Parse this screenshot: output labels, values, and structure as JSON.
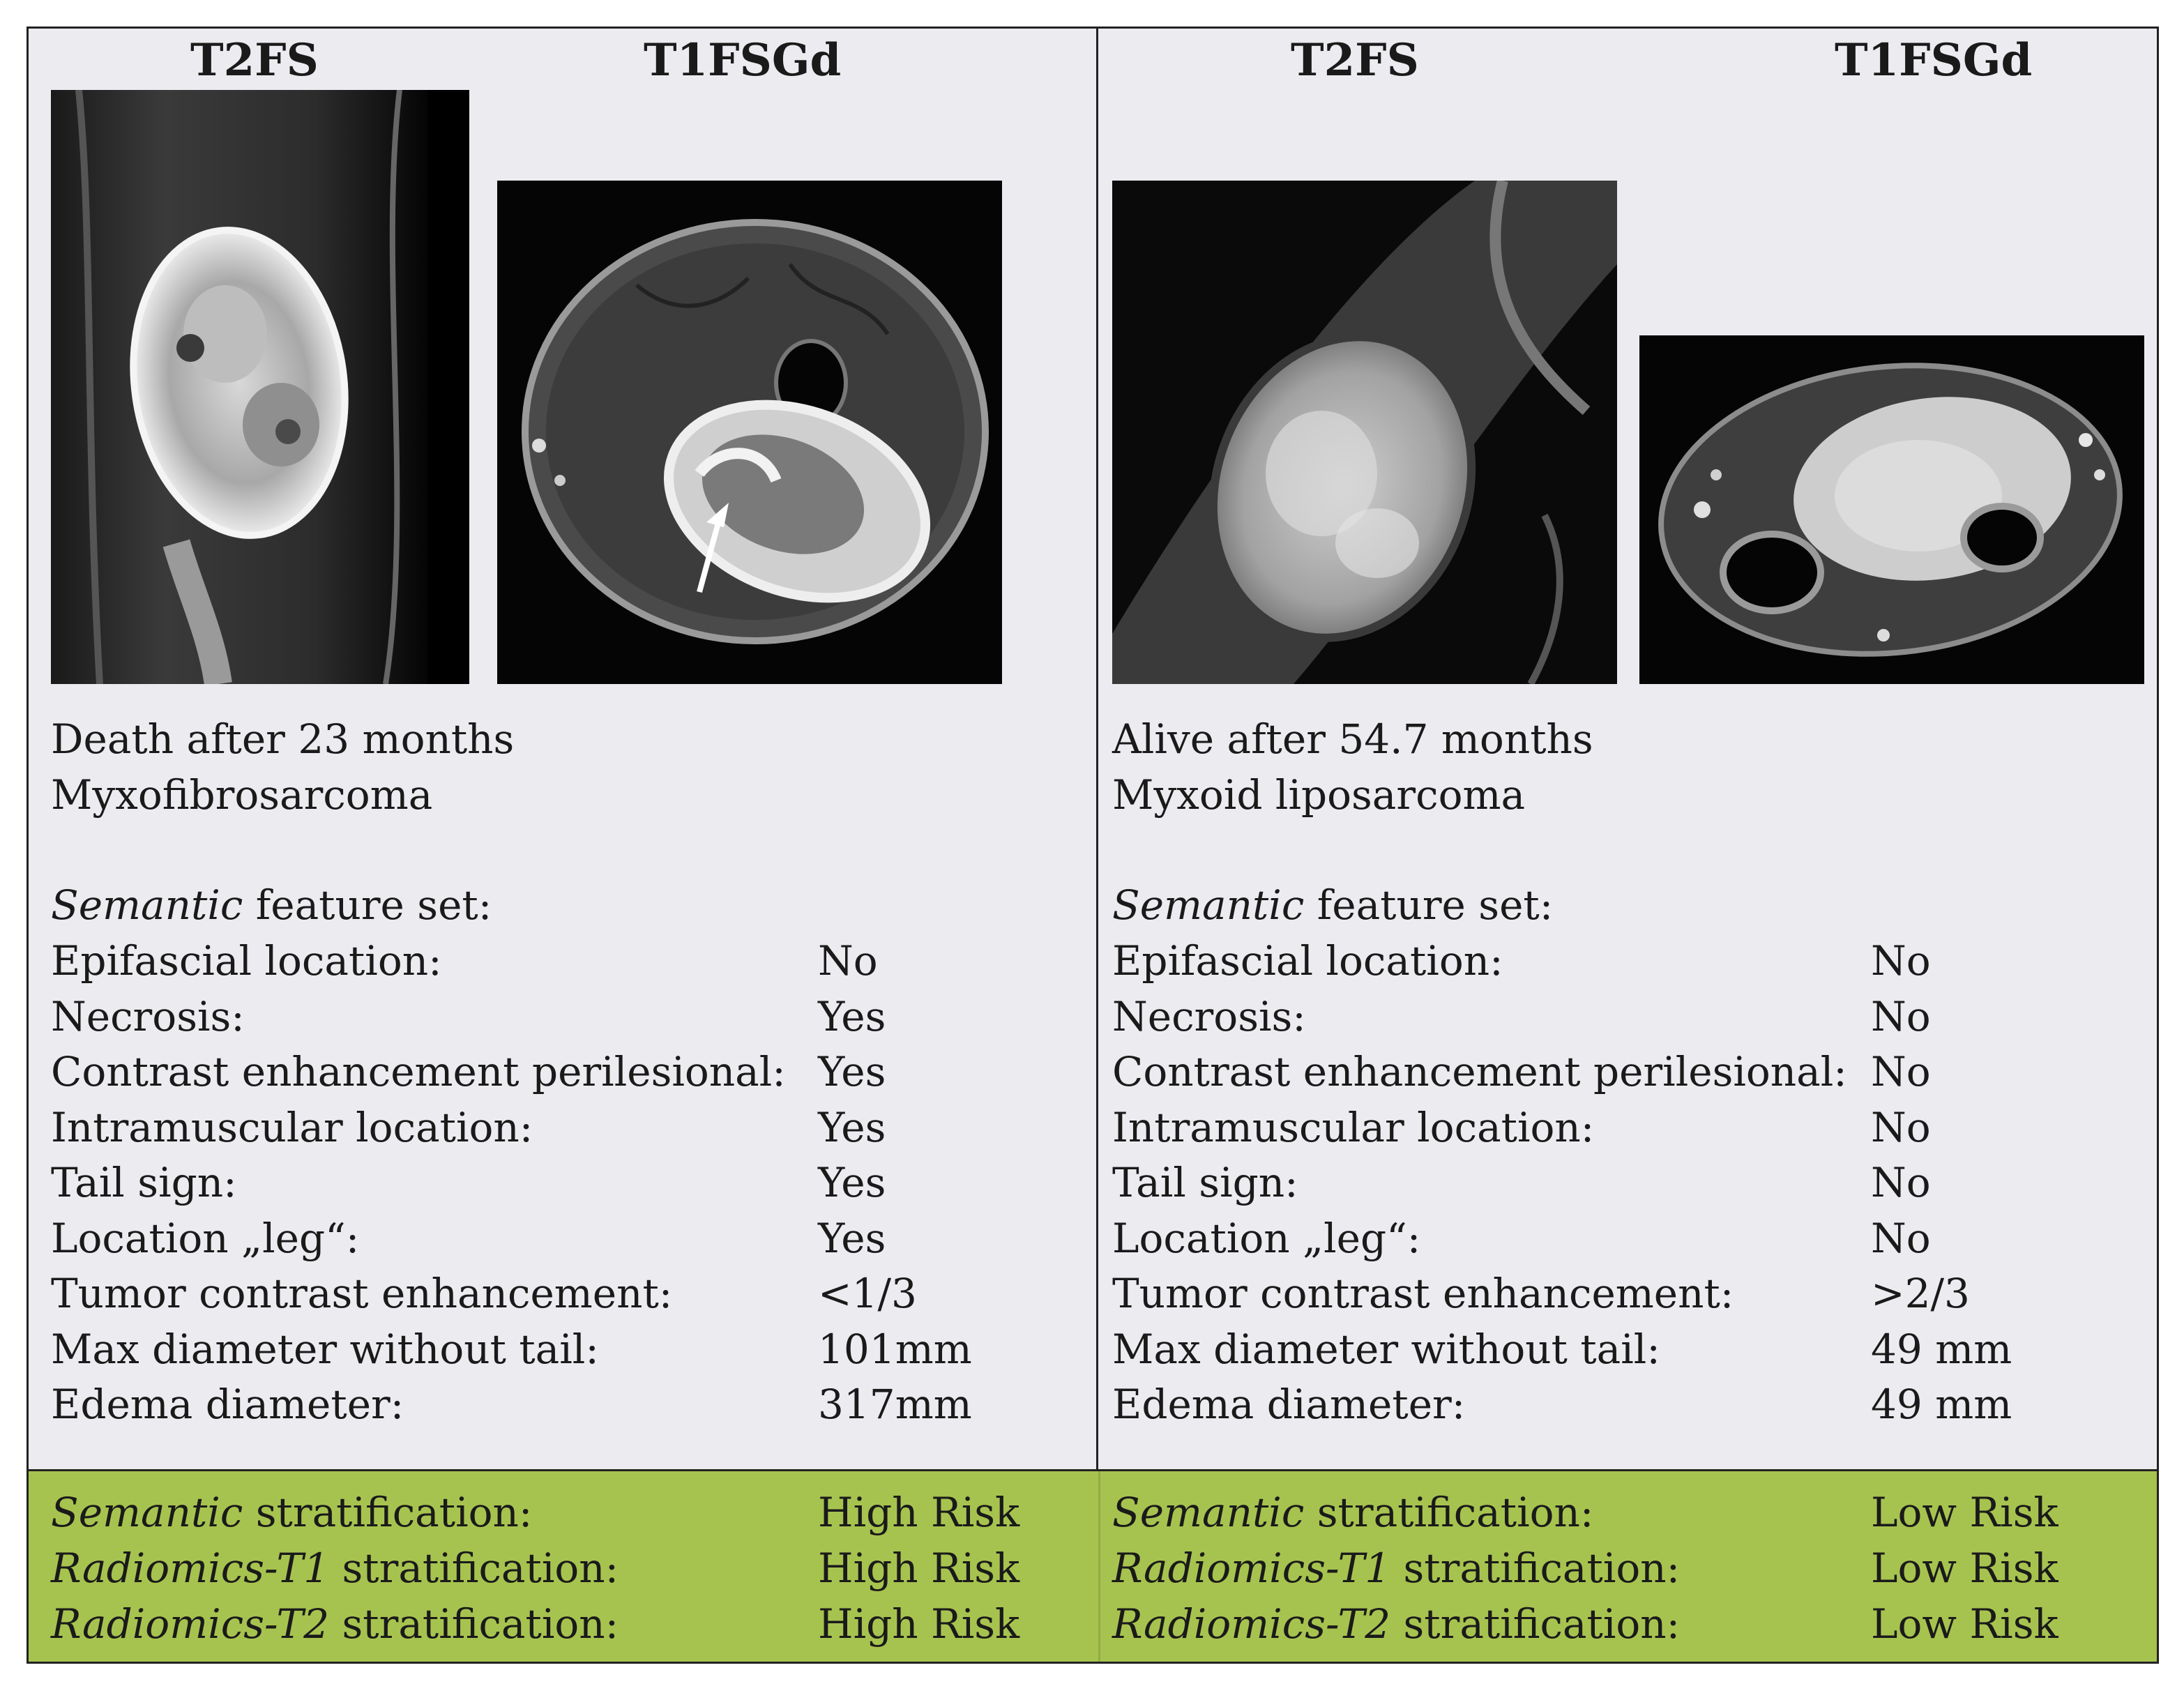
{
  "left_case": {
    "seq_labels": [
      "T2FS",
      "T1FSGd"
    ],
    "outcome": "Death after 23 months",
    "diagnosis": "Myxofibrosarcoma",
    "feature_set_italic": "Semantic",
    "feature_set_rest": " feature set:",
    "features": [
      {
        "name": "Epifascial location:",
        "value": "No"
      },
      {
        "name": "Necrosis:",
        "value": "Yes"
      },
      {
        "name": "Contrast enhancement perilesional:",
        "value": "Yes"
      },
      {
        "name": "Intramuscular location:",
        "value": "Yes"
      },
      {
        "name": "Tail sign:",
        "value": "Yes"
      },
      {
        "name": "Location „leg“:",
        "value": "Yes"
      },
      {
        "name": "Tumor contrast enhancement:",
        "value": "<1/3"
      },
      {
        "name": "Max diameter without tail:",
        "value": "101mm"
      },
      {
        "name": "Edema diameter:",
        "value": "317mm"
      }
    ],
    "stratification": [
      {
        "italic": "Semantic",
        "rest": " stratification:",
        "value": "High Risk"
      },
      {
        "italic": "Radiomics-T1",
        "rest": " stratification:",
        "value": "High Risk"
      },
      {
        "italic": "Radiomics-T2",
        "rest": " stratification:",
        "value": "High Risk"
      }
    ]
  },
  "right_case": {
    "seq_labels": [
      "T2FS",
      "T1FSGd"
    ],
    "outcome": "Alive after 54.7 months",
    "diagnosis": "Myxoid liposarcoma",
    "feature_set_italic": "Semantic",
    "feature_set_rest": " feature set:",
    "features": [
      {
        "name": "Epifascial location:",
        "value": "No"
      },
      {
        "name": "Necrosis:",
        "value": "No"
      },
      {
        "name": "Contrast enhancement perilesional:",
        "value": "No"
      },
      {
        "name": "Intramuscular location:",
        "value": "No"
      },
      {
        "name": "Tail sign:",
        "value": "No"
      },
      {
        "name": "Location „leg“:",
        "value": "No"
      },
      {
        "name": "Tumor contrast enhancement:",
        "value": ">2/3"
      },
      {
        "name": "Max diameter without tail:",
        "value": "49 mm"
      },
      {
        "name": "Edema diameter:",
        "value": "49 mm"
      }
    ],
    "stratification": [
      {
        "italic": "Semantic",
        "rest": " stratification:",
        "value": "Low Risk"
      },
      {
        "italic": "Radiomics-T1",
        "rest": " stratification:",
        "value": "Low Risk"
      },
      {
        "italic": "Radiomics-T2",
        "rest": " stratification:",
        "value": "Low Risk"
      }
    ]
  },
  "colors": {
    "panel_background": "#ececf0",
    "stratification_band": "#a7c34f",
    "border": "#222222"
  }
}
